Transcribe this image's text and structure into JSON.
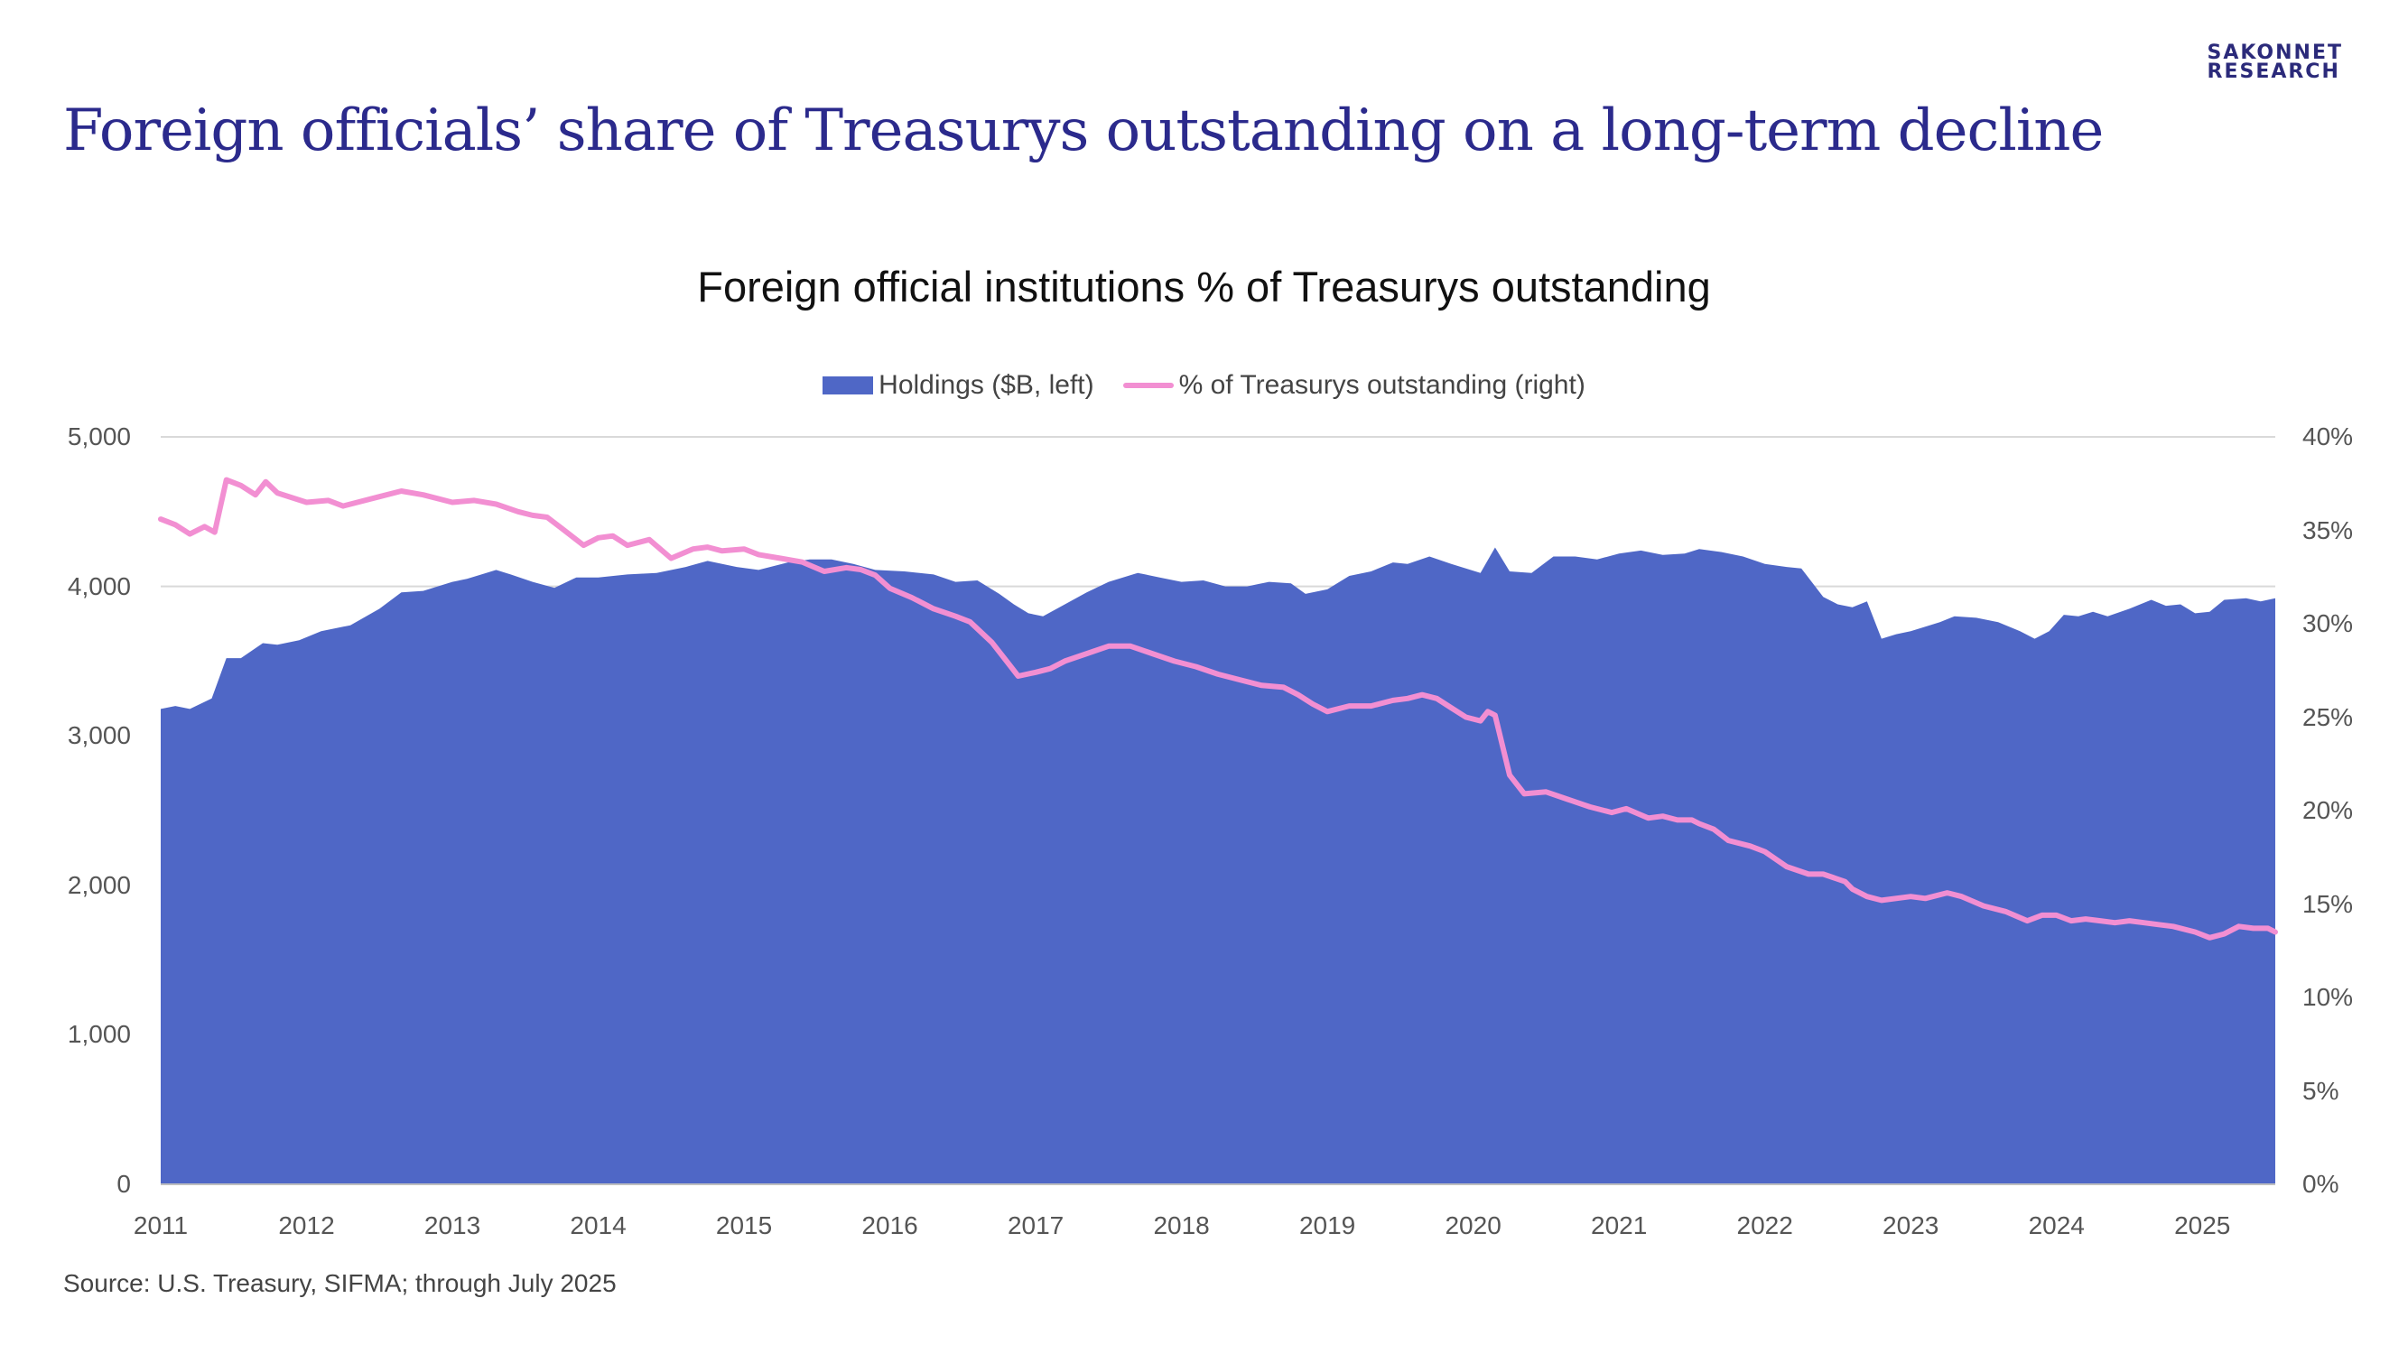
{
  "header": {
    "headline": "Foreign officials’ share of Treasurys outstanding on a long-term decline",
    "logo_line1": "SAKONNET",
    "logo_line2": "RESEARCH"
  },
  "footer": {
    "source": "Source: U.S. Treasury, SIFMA; through July 2025"
  },
  "colors": {
    "area": "#4f67c6",
    "line": "#f28fd2",
    "headline": "#2b2a8c",
    "grid": "#d9d9d9"
  },
  "chart_data": {
    "type": "area",
    "title": "Foreign official institutions % of Treasurys outstanding",
    "legend_position": "top-center",
    "grid": true,
    "x_start": "2011-01",
    "x_end": "2025-07",
    "x_ticks": [
      "2011",
      "2012",
      "2013",
      "2014",
      "2015",
      "2016",
      "2017",
      "2018",
      "2019",
      "2020",
      "2021",
      "2022",
      "2023",
      "2024",
      "2025"
    ],
    "y_left": {
      "ylim": [
        0,
        5000
      ],
      "ticks": [
        "0",
        "1,000",
        "2,000",
        "3,000",
        "4,000",
        "5,000"
      ]
    },
    "y_right": {
      "ylim": [
        0,
        40
      ],
      "ticks": [
        "0%",
        "5%",
        "10%",
        "15%",
        "20%",
        "25%",
        "30%",
        "35%",
        "40%"
      ]
    },
    "series": [
      {
        "name": "Holdings ($B, left)",
        "type": "area",
        "axis": "left",
        "x": [
          2011.0,
          2011.1,
          2011.2,
          2011.35,
          2011.45,
          2011.55,
          2011.7,
          2011.8,
          2011.95,
          2012.1,
          2012.3,
          2012.5,
          2012.65,
          2012.8,
          2013.0,
          2013.1,
          2013.3,
          2013.4,
          2013.55,
          2013.7,
          2013.85,
          2014.0,
          2014.2,
          2014.4,
          2014.6,
          2014.75,
          2014.95,
          2015.1,
          2015.3,
          2015.45,
          2015.6,
          2015.75,
          2015.9,
          2016.1,
          2016.3,
          2016.45,
          2016.6,
          2016.75,
          2016.85,
          2016.95,
          2017.05,
          2017.2,
          2017.35,
          2017.5,
          2017.7,
          2017.85,
          2018.0,
          2018.15,
          2018.3,
          2018.45,
          2018.6,
          2018.75,
          2018.85,
          2019.0,
          2019.15,
          2019.3,
          2019.45,
          2019.55,
          2019.7,
          2019.85,
          2020.05,
          2020.15,
          2020.25,
          2020.4,
          2020.55,
          2020.7,
          2020.85,
          2021.0,
          2021.15,
          2021.3,
          2021.45,
          2021.55,
          2021.7,
          2021.85,
          2022.0,
          2022.15,
          2022.25,
          2022.4,
          2022.5,
          2022.6,
          2022.7,
          2022.8,
          2022.9,
          2023.0,
          2023.1,
          2023.2,
          2023.3,
          2023.45,
          2023.6,
          2023.75,
          2023.85,
          2023.95,
          2024.05,
          2024.15,
          2024.25,
          2024.35,
          2024.5,
          2024.65,
          2024.75,
          2024.85,
          2024.95,
          2025.05,
          2025.15,
          2025.3,
          2025.4,
          2025.5
        ],
        "values": [
          3180,
          3200,
          3180,
          3250,
          3520,
          3520,
          3620,
          3610,
          3640,
          3700,
          3740,
          3850,
          3960,
          3970,
          4030,
          4050,
          4110,
          4080,
          4030,
          3990,
          4060,
          4060,
          4080,
          4090,
          4130,
          4170,
          4130,
          4110,
          4160,
          4180,
          4180,
          4150,
          4110,
          4100,
          4080,
          4030,
          4040,
          3950,
          3880,
          3820,
          3800,
          3880,
          3960,
          4030,
          4090,
          4060,
          4030,
          4040,
          4000,
          4000,
          4030,
          4020,
          3950,
          3980,
          4070,
          4100,
          4160,
          4150,
          4200,
          4150,
          4090,
          4260,
          4100,
          4090,
          4200,
          4200,
          4180,
          4220,
          4240,
          4210,
          4220,
          4250,
          4230,
          4200,
          4150,
          4130,
          4120,
          3930,
          3880,
          3860,
          3900,
          3650,
          3680,
          3700,
          3730,
          3760,
          3800,
          3790,
          3760,
          3700,
          3650,
          3700,
          3810,
          3800,
          3830,
          3800,
          3850,
          3910,
          3870,
          3880,
          3820,
          3830,
          3910,
          3920,
          3900,
          3920
        ]
      },
      {
        "name": "% of Treasurys outstanding (right)",
        "type": "line",
        "axis": "right",
        "x": [
          2011.0,
          2011.1,
          2011.2,
          2011.3,
          2011.37,
          2011.45,
          2011.55,
          2011.65,
          2011.72,
          2011.8,
          2012.0,
          2012.15,
          2012.25,
          2012.5,
          2012.65,
          2012.8,
          2013.0,
          2013.15,
          2013.3,
          2013.45,
          2013.55,
          2013.65,
          2013.75,
          2013.9,
          2014.0,
          2014.1,
          2014.2,
          2014.35,
          2014.5,
          2014.65,
          2014.75,
          2014.85,
          2015.0,
          2015.1,
          2015.25,
          2015.4,
          2015.55,
          2015.7,
          2015.8,
          2015.9,
          2016.0,
          2016.15,
          2016.3,
          2016.45,
          2016.55,
          2016.7,
          2016.8,
          2016.88,
          2017.0,
          2017.1,
          2017.2,
          2017.35,
          2017.5,
          2017.65,
          2017.8,
          2017.95,
          2018.1,
          2018.25,
          2018.4,
          2018.55,
          2018.7,
          2018.8,
          2018.9,
          2019.0,
          2019.15,
          2019.3,
          2019.45,
          2019.55,
          2019.65,
          2019.75,
          2019.85,
          2019.95,
          2020.05,
          2020.1,
          2020.15,
          2020.25,
          2020.35,
          2020.5,
          2020.65,
          2020.8,
          2020.95,
          2021.05,
          2021.2,
          2021.3,
          2021.4,
          2021.5,
          2021.55,
          2021.65,
          2021.75,
          2021.9,
          2022.0,
          2022.15,
          2022.3,
          2022.4,
          2022.55,
          2022.6,
          2022.7,
          2022.8,
          2023.0,
          2023.1,
          2023.25,
          2023.35,
          2023.5,
          2023.65,
          2023.8,
          2023.9,
          2024.0,
          2024.1,
          2024.2,
          2024.3,
          2024.4,
          2024.5,
          2024.6,
          2024.7,
          2024.8,
          2024.95,
          2025.05,
          2025.15,
          2025.25,
          2025.35,
          2025.45,
          2025.5
        ],
        "values": [
          35.6,
          35.3,
          34.8,
          35.2,
          34.9,
          37.7,
          37.4,
          36.9,
          37.6,
          37.0,
          36.5,
          36.6,
          36.3,
          36.8,
          37.1,
          36.9,
          36.5,
          36.6,
          36.4,
          36.0,
          35.8,
          35.7,
          35.1,
          34.2,
          34.6,
          34.7,
          34.2,
          34.5,
          33.5,
          34.0,
          34.1,
          33.9,
          34.0,
          33.7,
          33.5,
          33.3,
          32.8,
          33.0,
          32.9,
          32.6,
          31.9,
          31.4,
          30.8,
          30.4,
          30.1,
          29.0,
          28.0,
          27.2,
          27.4,
          27.6,
          28.0,
          28.4,
          28.8,
          28.8,
          28.4,
          28.0,
          27.7,
          27.3,
          27.0,
          26.7,
          26.6,
          26.2,
          25.7,
          25.3,
          25.6,
          25.6,
          25.9,
          26.0,
          26.2,
          26.0,
          25.5,
          25.0,
          24.8,
          25.3,
          25.1,
          21.9,
          20.9,
          21.0,
          20.6,
          20.2,
          19.9,
          20.1,
          19.6,
          19.7,
          19.5,
          19.5,
          19.3,
          19.0,
          18.4,
          18.1,
          17.8,
          17.0,
          16.6,
          16.6,
          16.2,
          15.8,
          15.4,
          15.2,
          15.4,
          15.3,
          15.6,
          15.4,
          14.9,
          14.6,
          14.1,
          14.4,
          14.4,
          14.1,
          14.2,
          14.1,
          14.0,
          14.1,
          14.0,
          13.9,
          13.8,
          13.5,
          13.2,
          13.4,
          13.8,
          13.7,
          13.7,
          13.5
        ]
      }
    ]
  }
}
